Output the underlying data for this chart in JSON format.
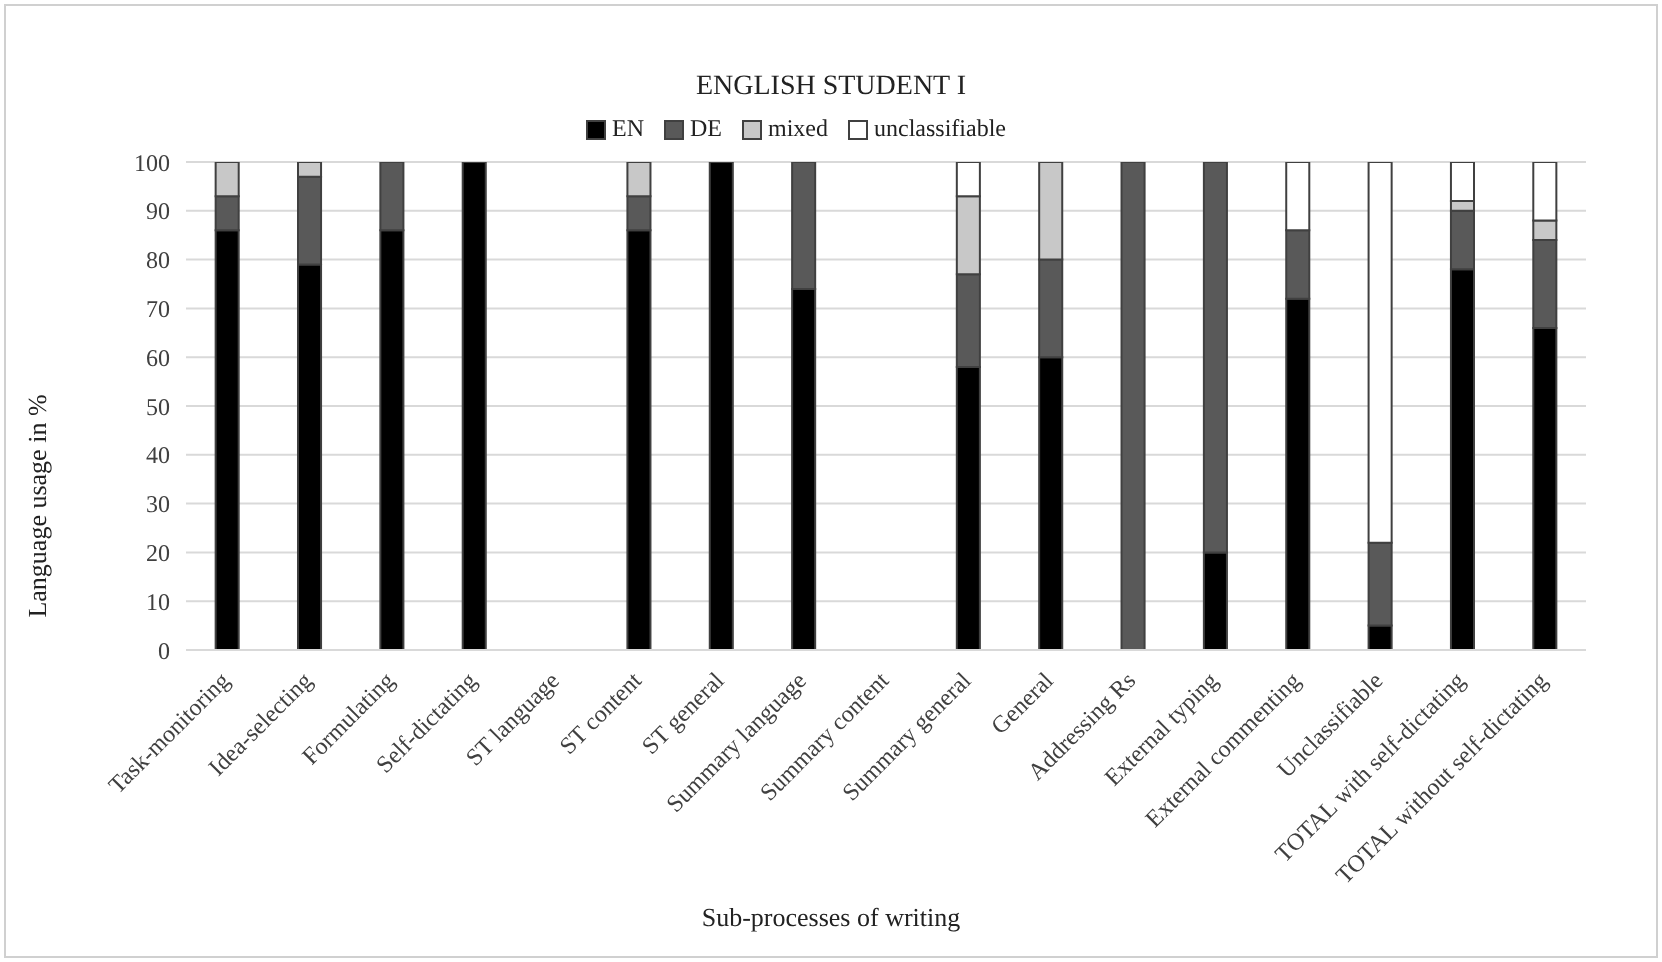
{
  "chart_data": {
    "type": "bar",
    "title": "ENGLISH STUDENT I",
    "xlabel": "Sub-processes of writing",
    "ylabel": "Language usage in %",
    "categories": [
      "Task-monitoring",
      "Idea-selecting",
      "Formulating",
      "Self-dictating",
      "ST language",
      "ST content",
      "ST general",
      "Summary language",
      "Summary content",
      "Summary general",
      "General",
      "Addressing Rs",
      "External typing",
      "External commenting",
      "Unclassifiable",
      "TOTAL with self-dictating",
      "TOTAL without self-dictating"
    ],
    "series": [
      {
        "name": "EN",
        "color": "#000000",
        "values": [
          86,
          79,
          86,
          100,
          null,
          86,
          100,
          74,
          null,
          58,
          60,
          0,
          20,
          72,
          5,
          78,
          66
        ]
      },
      {
        "name": "DE",
        "color": "#595959",
        "values": [
          7,
          18,
          14,
          0,
          null,
          7,
          0,
          26,
          null,
          19,
          20,
          100,
          80,
          14,
          17,
          12,
          18
        ]
      },
      {
        "name": "mixed",
        "color": "#c8c8c8",
        "values": [
          7,
          3,
          0,
          0,
          null,
          7,
          0,
          0,
          null,
          16,
          20,
          0,
          0,
          0,
          0,
          2,
          4
        ]
      },
      {
        "name": "unclassifiable",
        "color": "#ffffff",
        "values": [
          0,
          0,
          0,
          0,
          null,
          0,
          0,
          0,
          null,
          7,
          0,
          0,
          0,
          14,
          78,
          8,
          12
        ]
      }
    ],
    "stacked": true,
    "ylim": [
      0,
      100
    ],
    "yticks": [
      0,
      10,
      20,
      30,
      40,
      50,
      60,
      70,
      80,
      90,
      100
    ],
    "grid": "y",
    "legend": "top"
  }
}
